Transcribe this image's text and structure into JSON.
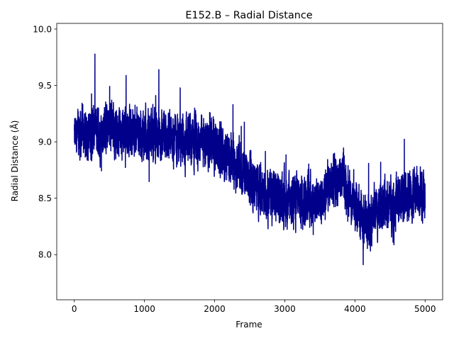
{
  "chart_data": {
    "type": "line",
    "title": "E152.B – Radial Distance",
    "xlabel": "Frame",
    "ylabel": "Radial Distance (Å)",
    "xlim": [
      -250,
      5250
    ],
    "ylim": [
      7.6,
      10.05
    ],
    "xticks": [
      0,
      1000,
      2000,
      3000,
      4000,
      5000
    ],
    "xtick_labels": [
      "0",
      "1000",
      "2000",
      "3000",
      "4000",
      "5000"
    ],
    "yticks": [
      8.0,
      8.5,
      9.0,
      9.5,
      10.0
    ],
    "ytick_labels": [
      "8.0",
      "8.5",
      "9.0",
      "9.5",
      "10.0"
    ],
    "grid": false,
    "series": [
      {
        "color": "#00008b",
        "x_start": 0,
        "x_end": 5000,
        "frames": 5000,
        "trend": [
          [
            0,
            9.05
          ],
          [
            500,
            9.12
          ],
          [
            1000,
            9.08
          ],
          [
            1500,
            9.02
          ],
          [
            2000,
            8.98
          ],
          [
            2300,
            8.8
          ],
          [
            2600,
            8.6
          ],
          [
            3000,
            8.48
          ],
          [
            3500,
            8.5
          ],
          [
            3800,
            8.7
          ],
          [
            4000,
            8.45
          ],
          [
            4100,
            8.3
          ],
          [
            4500,
            8.45
          ],
          [
            5000,
            8.6
          ]
        ],
        "observed_max": 9.92,
        "observed_min": 7.72
      }
    ]
  }
}
